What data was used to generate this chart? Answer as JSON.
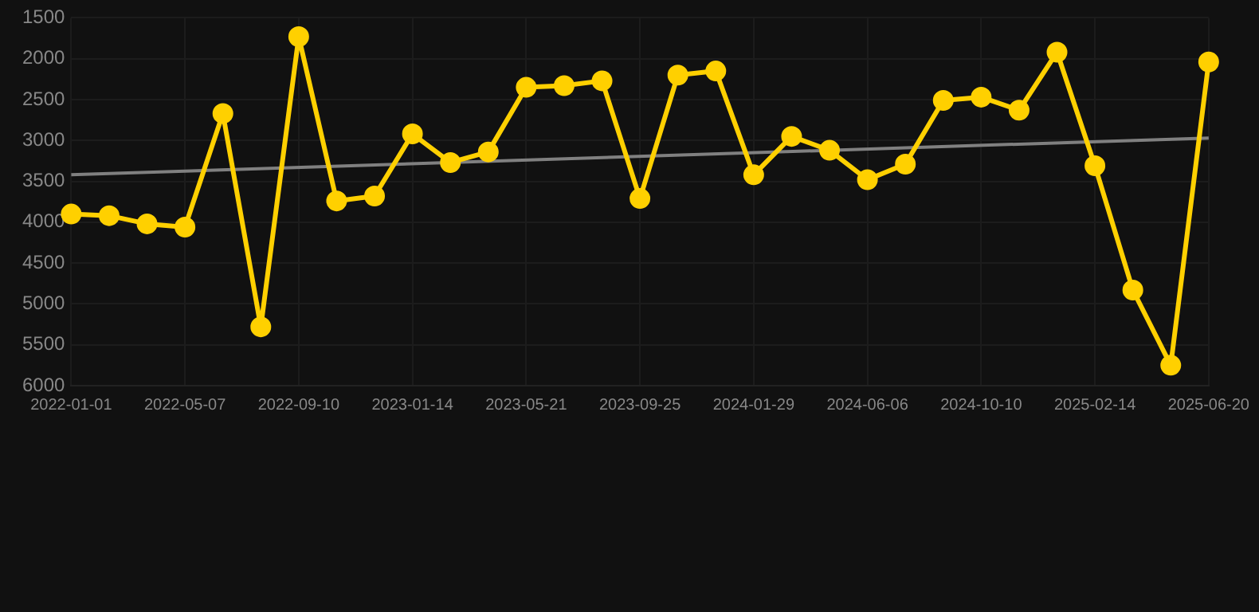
{
  "chart_data": {
    "type": "line",
    "categories": [
      "2022-01-01",
      null,
      null,
      "2022-05-07",
      null,
      null,
      "2022-09-10",
      null,
      null,
      "2023-01-14",
      null,
      null,
      "2023-05-21",
      null,
      null,
      "2023-09-25",
      null,
      null,
      "2024-01-29",
      null,
      null,
      "2024-06-06",
      null,
      null,
      "2024-10-10",
      null,
      null,
      "2025-02-14",
      null,
      null,
      "2025-06-20"
    ],
    "series": [
      {
        "color": "#ffd000",
        "marker": "circle",
        "values": [
          3900,
          3920,
          4020,
          4060,
          2670,
          5280,
          1730,
          3740,
          3680,
          2920,
          3270,
          3140,
          2350,
          2330,
          2270,
          3710,
          2200,
          2150,
          3420,
          2950,
          3120,
          3480,
          3290,
          2510,
          2470,
          2630,
          1920,
          3310,
          4830,
          5750,
          2040
        ]
      },
      {
        "type": "line",
        "color": "#808080",
        "marker": "none",
        "values": [
          3420,
          null,
          null,
          null,
          null,
          null,
          null,
          null,
          null,
          null,
          null,
          null,
          null,
          null,
          null,
          null,
          null,
          null,
          null,
          null,
          null,
          null,
          null,
          null,
          null,
          null,
          null,
          null,
          null,
          null,
          2970
        ]
      }
    ],
    "ylim": [
      6000,
      1500
    ],
    "yticks": [
      1500,
      2000,
      2500,
      3000,
      3500,
      4000,
      4500,
      5000,
      5500,
      6000
    ],
    "grid": true,
    "legend": false
  }
}
